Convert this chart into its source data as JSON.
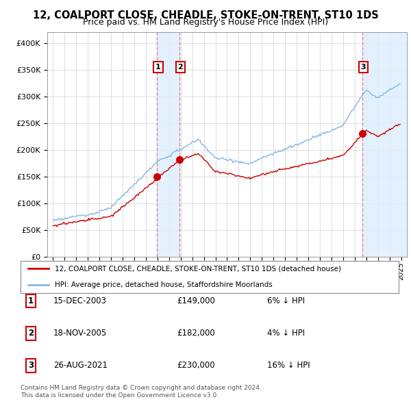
{
  "title": "12, COALPORT CLOSE, CHEADLE, STOKE-ON-TRENT, ST10 1DS",
  "subtitle": "Price paid vs. HM Land Registry's House Price Index (HPI)",
  "legend_line1": "12, COALPORT CLOSE, CHEADLE, STOKE-ON-TRENT, ST10 1DS (detached house)",
  "legend_line2": "HPI: Average price, detached house, Staffordshire Moorlands",
  "sale1_date": "15-DEC-2003",
  "sale1_price": 149000,
  "sale1_hpi": "6% ↓ HPI",
  "sale1_year": 2003.96,
  "sale2_date": "18-NOV-2005",
  "sale2_price": 182000,
  "sale2_hpi": "4% ↓ HPI",
  "sale2_year": 2005.88,
  "sale3_date": "26-AUG-2021",
  "sale3_price": 230000,
  "sale3_hpi": "16% ↓ HPI",
  "sale3_year": 2021.65,
  "footer": "Contains HM Land Registry data © Crown copyright and database right 2024.\nThis data is licensed under the Open Government Licence v3.0.",
  "red_color": "#cc0000",
  "blue_color": "#88b8e0",
  "vline_color": "#e88888",
  "vband_color": "#ddeeff",
  "ylim": [
    0,
    420000
  ],
  "yticks": [
    0,
    50000,
    100000,
    150000,
    200000,
    250000,
    300000,
    350000,
    400000
  ],
  "xmin": 1994.5,
  "xmax": 2025.5
}
